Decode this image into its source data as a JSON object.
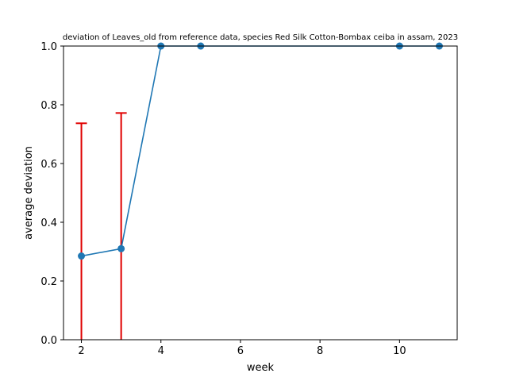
{
  "chart_data": {
    "type": "line",
    "title": "deviation of Leaves_old from reference data, species Red Silk Cotton-Bombax ceiba in assam, 2023",
    "xlabel": "week",
    "ylabel": "average deviation",
    "xlim": [
      1.55,
      11.45
    ],
    "ylim": [
      0.0,
      1.0
    ],
    "xticks": [
      2,
      4,
      6,
      8,
      10
    ],
    "xtick_labels": [
      "2",
      "4",
      "6",
      "8",
      "10"
    ],
    "yticks": [
      0.0,
      0.2,
      0.4,
      0.6,
      0.8,
      1.0
    ],
    "ytick_labels": [
      "0.0",
      "0.2",
      "0.4",
      "0.6",
      "0.8",
      "1.0"
    ],
    "grid": false,
    "series": [
      {
        "x": [
          2,
          3,
          4,
          5,
          10,
          11
        ],
        "y": [
          0.285,
          0.31,
          1.0,
          1.0,
          1.0,
          1.0
        ],
        "color": "#1f77b4",
        "marker": "circle"
      }
    ],
    "error_bars": {
      "color": "#e00000",
      "items": [
        {
          "x": 2,
          "low": 0.0,
          "high": 0.737
        },
        {
          "x": 3,
          "low": 0.0,
          "high": 0.772
        },
        {
          "x": 4,
          "low": 1.0,
          "high": 1.0
        },
        {
          "x": 5,
          "low": 1.0,
          "high": 1.0
        },
        {
          "x": 10,
          "low": 1.0,
          "high": 1.0
        },
        {
          "x": 11,
          "low": 1.0,
          "high": 1.0
        }
      ]
    }
  }
}
